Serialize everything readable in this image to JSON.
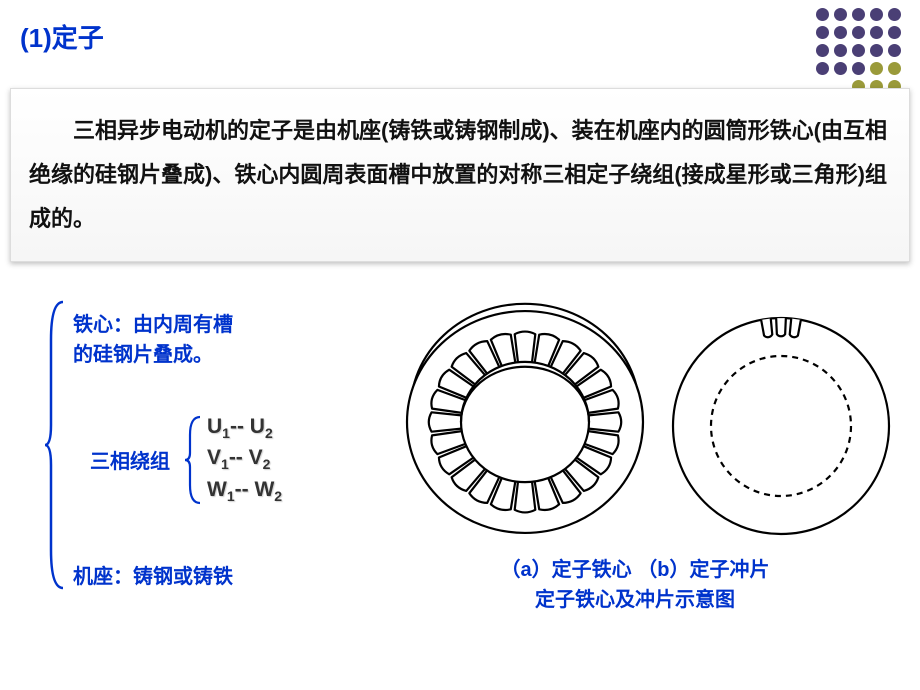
{
  "title": "(1)定子",
  "description": "三相异步电动机的定子是由机座(铸铁或铸钢制成)、装在机座内的圆筒形铁心(由互相绝缘的硅钢片叠成)、铁心内圆周表面槽中放置的对称三相定子绕组(接成星形或三角形)组成的。",
  "left": {
    "iron_core_line1": "铁心：由内周有槽",
    "iron_core_line2": "的硅钢片叠成。",
    "winding_label": "三相绕组",
    "terms": [
      {
        "a1": "U",
        "s1": "1",
        "a2": "U",
        "s2": "2"
      },
      {
        "a1": "V",
        "s1": "1",
        "a2": "V",
        "s2": "2"
      },
      {
        "a1": "W",
        "s1": "1",
        "a2": "W",
        "s2": "2"
      }
    ],
    "frame": "机座：铸钢或铸铁"
  },
  "caption_line1": "（a）定子铁心 （b）定子冲片",
  "caption_line2": "定子铁心及冲片示意图",
  "colors": {
    "title": "#0033cc",
    "text": "#111111",
    "dot_dark": "#4a3f75",
    "dot_olive": "#9a9a3a",
    "dot_gray": "#bcbcbc"
  },
  "dot_grid": {
    "cols": 5,
    "rows": 7,
    "pattern": [
      [
        "dark",
        "dark",
        "dark",
        "dark",
        "dark"
      ],
      [
        "dark",
        "dark",
        "dark",
        "dark",
        "dark"
      ],
      [
        "dark",
        "dark",
        "dark",
        "dark",
        "dark"
      ],
      [
        "dark",
        "dark",
        "dark",
        "olive",
        "olive"
      ],
      [
        "",
        "",
        "olive",
        "olive",
        "olive"
      ],
      [
        "",
        "",
        "",
        "olive",
        "gray"
      ],
      [
        "",
        "",
        "",
        "gray",
        "gray"
      ]
    ],
    "map": {
      "dark": "#4a3f75",
      "olive": "#9a9a3a",
      "gray": "#bcbcbc",
      "": ""
    }
  },
  "diagram": {
    "core": {
      "type": "stator-core-schematic",
      "outer_r": 118,
      "inner_r": 64,
      "slot_count": 24,
      "stroke": "#000000",
      "stroke_w": 2.2,
      "fill": "#ffffff"
    },
    "sheet": {
      "type": "stator-lamination-schematic",
      "outer_r": 108,
      "inner_r": 70,
      "stroke": "#000000",
      "stroke_w": 2.2,
      "dash": "6 5",
      "notch_count": 3
    }
  }
}
